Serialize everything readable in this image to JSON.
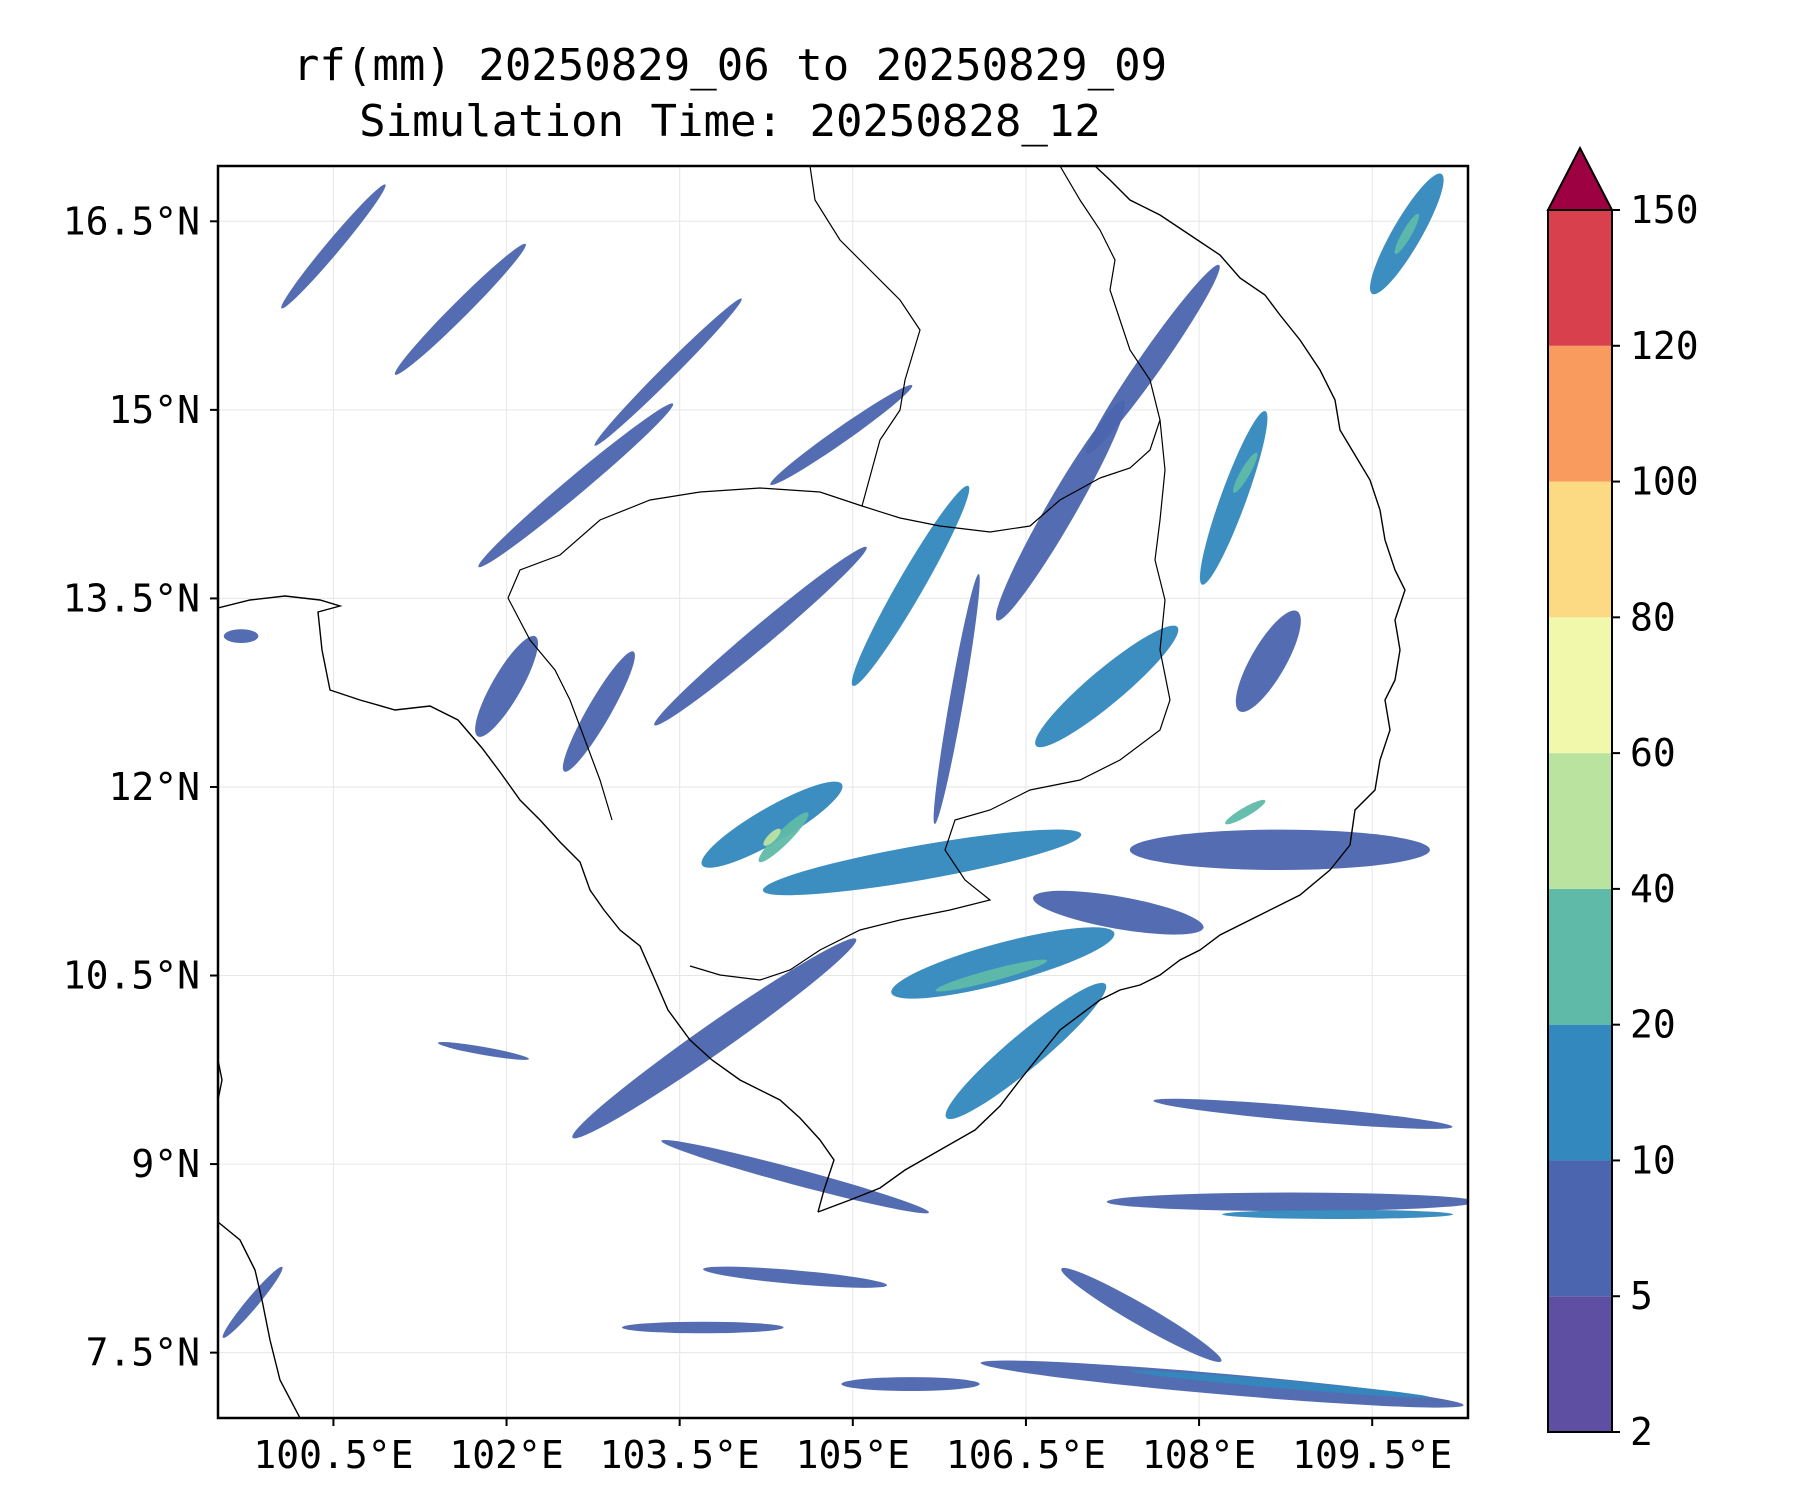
{
  "title": {
    "line1": "rf(mm) 20250829_06 to 20250829_09",
    "line2": "Simulation Time: 20250828_12"
  },
  "map": {
    "lon_range": [
      99.5,
      110.33
    ],
    "lat_range": [
      6.98,
      16.94
    ],
    "x_ticks": [
      {
        "value": 100.5,
        "label": "100.5°E"
      },
      {
        "value": 102,
        "label": "102°E"
      },
      {
        "value": 103.5,
        "label": "103.5°E"
      },
      {
        "value": 105,
        "label": "105°E"
      },
      {
        "value": 106.5,
        "label": "106.5°E"
      },
      {
        "value": 108,
        "label": "108°E"
      },
      {
        "value": 109.5,
        "label": "109.5°E"
      }
    ],
    "y_ticks": [
      {
        "value": 16.5,
        "label": "16.5°N"
      },
      {
        "value": 15,
        "label": "15°N"
      },
      {
        "value": 13.5,
        "label": "13.5°N"
      },
      {
        "value": 12,
        "label": "12°N"
      },
      {
        "value": 10.5,
        "label": "10.5°N"
      },
      {
        "value": 9,
        "label": "9°N"
      },
      {
        "value": 7.5,
        "label": "7.5°N"
      }
    ],
    "grid": true
  },
  "colorbar": {
    "levels": [
      2,
      5,
      10,
      20,
      40,
      60,
      80,
      100,
      120,
      150
    ],
    "colors": [
      "#5e4fa2",
      "#4b65ae",
      "#3388bd",
      "#5fbaa8",
      "#bbe3a0",
      "#f2f8ab",
      "#fbda83",
      "#f99b5e",
      "#d8404d"
    ],
    "extend_color": "#9e0142"
  },
  "rain_fields": [
    {
      "lon": 100.5,
      "lat": 16.3,
      "len": 1.4,
      "wid": 0.12,
      "angle": -50,
      "cls": 1
    },
    {
      "lon": 101.6,
      "lat": 15.8,
      "len": 1.6,
      "wid": 0.14,
      "angle": -45,
      "cls": 1
    },
    {
      "lon": 102.6,
      "lat": 14.4,
      "len": 2.2,
      "wid": 0.16,
      "angle": -40,
      "cls": 1
    },
    {
      "lon": 103.4,
      "lat": 15.3,
      "len": 1.8,
      "wid": 0.12,
      "angle": -45,
      "cls": 1
    },
    {
      "lon": 104.9,
      "lat": 14.8,
      "len": 1.5,
      "wid": 0.13,
      "angle": -35,
      "cls": 1
    },
    {
      "lon": 104.2,
      "lat": 13.2,
      "len": 2.4,
      "wid": 0.18,
      "angle": -40,
      "cls": 1
    },
    {
      "lon": 105.5,
      "lat": 13.6,
      "len": 2.0,
      "wid": 0.22,
      "angle": -60,
      "cls": 2
    },
    {
      "lon": 106.8,
      "lat": 14.2,
      "len": 2.2,
      "wid": 0.25,
      "angle": -60,
      "cls": 1
    },
    {
      "lon": 107.6,
      "lat": 15.4,
      "len": 2.0,
      "wid": 0.2,
      "angle": -55,
      "cls": 1
    },
    {
      "lon": 108.3,
      "lat": 14.3,
      "len": 1.6,
      "wid": 0.22,
      "angle": -70,
      "cls": 2
    },
    {
      "lon": 108.4,
      "lat": 14.5,
      "len": 0.4,
      "wid": 0.08,
      "angle": -60,
      "cls": 3
    },
    {
      "lon": 107.2,
      "lat": 12.8,
      "len": 1.6,
      "wid": 0.3,
      "angle": -40,
      "cls": 2
    },
    {
      "lon": 108.6,
      "lat": 13.0,
      "len": 1.0,
      "wid": 0.3,
      "angle": -60,
      "cls": 1
    },
    {
      "lon": 109.8,
      "lat": 16.4,
      "len": 1.2,
      "wid": 0.25,
      "angle": -60,
      "cls": 2
    },
    {
      "lon": 109.8,
      "lat": 16.4,
      "len": 0.4,
      "wid": 0.08,
      "angle": -60,
      "cls": 3
    },
    {
      "lon": 102.0,
      "lat": 12.8,
      "len": 1.0,
      "wid": 0.25,
      "angle": -60,
      "cls": 1
    },
    {
      "lon": 104.3,
      "lat": 11.7,
      "len": 1.4,
      "wid": 0.3,
      "angle": -30,
      "cls": 2
    },
    {
      "lon": 104.4,
      "lat": 11.6,
      "len": 0.6,
      "wid": 0.12,
      "angle": -45,
      "cls": 3
    },
    {
      "lon": 104.3,
      "lat": 11.6,
      "len": 0.2,
      "wid": 0.06,
      "angle": -45,
      "cls": 4
    },
    {
      "lon": 105.6,
      "lat": 11.4,
      "len": 2.8,
      "wid": 0.3,
      "angle": -10,
      "cls": 2
    },
    {
      "lon": 106.3,
      "lat": 10.6,
      "len": 2.0,
      "wid": 0.35,
      "angle": -15,
      "cls": 2
    },
    {
      "lon": 106.2,
      "lat": 10.5,
      "len": 1.0,
      "wid": 0.1,
      "angle": -15,
      "cls": 3
    },
    {
      "lon": 103.8,
      "lat": 10.0,
      "len": 3.0,
      "wid": 0.25,
      "angle": -35,
      "cls": 1
    },
    {
      "lon": 106.5,
      "lat": 9.9,
      "len": 1.8,
      "wid": 0.3,
      "angle": -40,
      "cls": 2
    },
    {
      "lon": 108.7,
      "lat": 11.5,
      "len": 2.6,
      "wid": 0.35,
      "angle": 0,
      "cls": 1
    },
    {
      "lon": 108.4,
      "lat": 11.8,
      "len": 0.4,
      "wid": 0.08,
      "angle": -30,
      "cls": 3
    },
    {
      "lon": 107.3,
      "lat": 11.0,
      "len": 1.5,
      "wid": 0.28,
      "angle": 10,
      "cls": 1
    },
    {
      "lon": 104.5,
      "lat": 8.9,
      "len": 2.4,
      "wid": 0.14,
      "angle": 15,
      "cls": 1
    },
    {
      "lon": 108.8,
      "lat": 8.7,
      "len": 3.2,
      "wid": 0.16,
      "angle": 0,
      "cls": 1
    },
    {
      "lon": 108.9,
      "lat": 9.4,
      "len": 2.6,
      "wid": 0.13,
      "angle": 5,
      "cls": 1
    },
    {
      "lon": 109.2,
      "lat": 8.6,
      "len": 2.0,
      "wid": 0.08,
      "angle": 0,
      "cls": 2
    },
    {
      "lon": 104.5,
      "lat": 8.1,
      "len": 1.6,
      "wid": 0.12,
      "angle": 5,
      "cls": 1
    },
    {
      "lon": 103.7,
      "lat": 7.7,
      "len": 1.4,
      "wid": 0.1,
      "angle": 0,
      "cls": 1
    },
    {
      "lon": 107.5,
      "lat": 7.8,
      "len": 1.6,
      "wid": 0.18,
      "angle": 30,
      "cls": 1
    },
    {
      "lon": 108.2,
      "lat": 7.25,
      "len": 4.2,
      "wid": 0.18,
      "angle": 5,
      "cls": 1
    },
    {
      "lon": 108.7,
      "lat": 7.25,
      "len": 2.6,
      "wid": 0.07,
      "angle": 5,
      "cls": 2
    },
    {
      "lon": 105.5,
      "lat": 7.25,
      "len": 1.2,
      "wid": 0.12,
      "angle": 0,
      "cls": 1
    },
    {
      "lon": 99.8,
      "lat": 7.9,
      "len": 0.8,
      "wid": 0.1,
      "angle": -50,
      "cls": 1
    },
    {
      "lon": 99.7,
      "lat": 13.2,
      "len": 0.3,
      "wid": 0.12,
      "angle": 0,
      "cls": 1
    },
    {
      "lon": 101.8,
      "lat": 9.9,
      "len": 0.8,
      "wid": 0.06,
      "angle": 10,
      "cls": 1
    },
    {
      "lon": 102.8,
      "lat": 12.6,
      "len": 1.2,
      "wid": 0.2,
      "angle": -60,
      "cls": 1
    },
    {
      "lon": 105.9,
      "lat": 12.7,
      "len": 2.2,
      "wid": 0.12,
      "angle": -80,
      "cls": 1
    }
  ]
}
